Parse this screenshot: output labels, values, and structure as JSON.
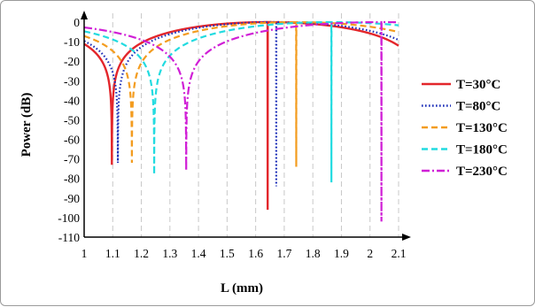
{
  "chart_data": {
    "type": "line",
    "xlabel": "L (mm)",
    "ylabel": "Power (dB)",
    "xlim": [
      1,
      2.1
    ],
    "ylim": [
      -110,
      0
    ],
    "x_ticks": [
      "1",
      "1.1",
      "1.2",
      "1.3",
      "1.4",
      "1.5",
      "1.6",
      "1.7",
      "1.8",
      "1.9",
      "2",
      "2.1"
    ],
    "y_ticks": [
      "0",
      "-10",
      "-20",
      "-30",
      "-40",
      "-50",
      "-60",
      "-70",
      "-80",
      "-90",
      "-100",
      "-110"
    ],
    "grid": "vertical dashed",
    "legend_position": "right",
    "series": [
      {
        "name": "T=30°C",
        "color": "#e3262b",
        "dash": "solid",
        "dips": [
          [
            1.097,
            -73
          ],
          [
            1.642,
            -96
          ]
        ]
      },
      {
        "name": "T=80°C",
        "color": "#1d2fb8",
        "dash": "dotted",
        "dips": [
          [
            1.118,
            -72
          ],
          [
            1.672,
            -84
          ]
        ]
      },
      {
        "name": "T=130°C",
        "color": "#f39c1f",
        "dash": "dashed",
        "dips": [
          [
            1.167,
            -72
          ],
          [
            1.742,
            -74
          ]
        ]
      },
      {
        "name": "T=180°C",
        "color": "#22dbe0",
        "dash": "dashed",
        "dips": [
          [
            1.245,
            -78
          ],
          [
            1.865,
            -82
          ]
        ]
      },
      {
        "name": "T=230°C",
        "color": "#d01fd6",
        "dash": "dashdot",
        "dips": [
          [
            1.357,
            -76
          ],
          [
            2.04,
            -102
          ]
        ]
      }
    ]
  }
}
